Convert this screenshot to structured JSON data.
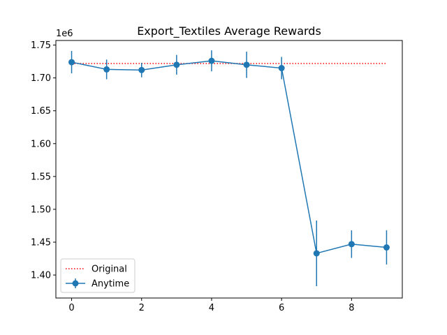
{
  "chart_data": {
    "type": "line",
    "title": "Export_Textiles Average Rewards",
    "xlabel": "",
    "ylabel": "",
    "y_offset_label": "1e6",
    "xlim": [
      -0.45,
      9.45
    ],
    "ylim": [
      1.365,
      1.757
    ],
    "x_ticks": [
      0,
      2,
      4,
      6,
      8
    ],
    "x_tick_labels": [
      "0",
      "2",
      "4",
      "6",
      "8"
    ],
    "y_ticks": [
      1.4,
      1.45,
      1.5,
      1.55,
      1.6,
      1.65,
      1.7,
      1.75
    ],
    "y_tick_labels": [
      "1.40",
      "1.45",
      "1.50",
      "1.55",
      "1.60",
      "1.65",
      "1.70",
      "1.75"
    ],
    "grid": false,
    "legend_position": "lower-left",
    "series": [
      {
        "name": "Original",
        "style": "dotted",
        "color": "#ff0000",
        "x": [
          0,
          9
        ],
        "values": [
          1.722,
          1.722
        ]
      },
      {
        "name": "Anytime",
        "style": "solid-markers-errorbars",
        "color": "#1f77b4",
        "x": [
          0,
          1,
          2,
          3,
          4,
          5,
          6,
          7,
          8,
          9
        ],
        "values": [
          1.724,
          1.713,
          1.712,
          1.72,
          1.726,
          1.72,
          1.715,
          1.433,
          1.447,
          1.442
        ],
        "errors": [
          0.017,
          0.015,
          0.011,
          0.015,
          0.016,
          0.02,
          0.017,
          0.05,
          0.021,
          0.026
        ]
      }
    ]
  }
}
